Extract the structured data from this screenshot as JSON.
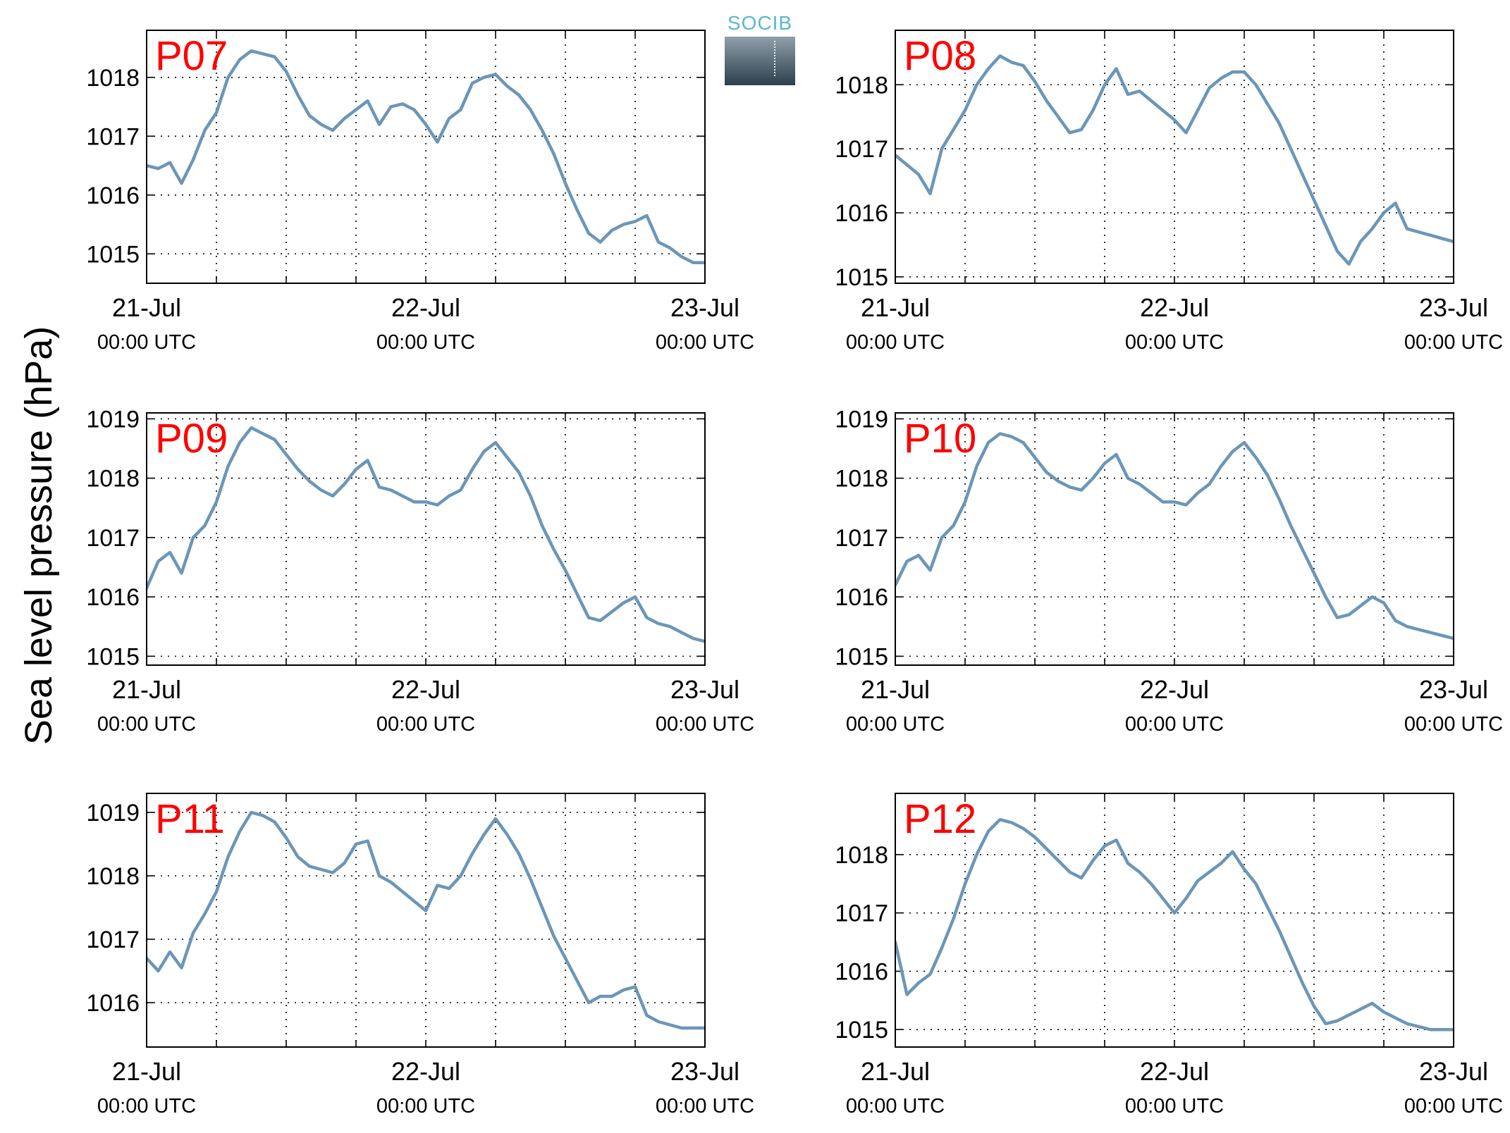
{
  "ylabel": "Sea level pressure (hPa)",
  "logo": {
    "text": "SOCIB"
  },
  "colors": {
    "line": "#6b96b8",
    "station_label": "#ff0000"
  },
  "chart_data": [
    {
      "type": "line",
      "name": "P07",
      "xlim": [
        0,
        48
      ],
      "xticks": [
        0,
        24,
        48
      ],
      "xticklabels": [
        [
          "21-Jul",
          "00:00 UTC"
        ],
        [
          "22-Jul",
          "00:00 UTC"
        ],
        [
          "23-Jul",
          "00:00 UTC"
        ]
      ],
      "ylim": [
        1014.5,
        1018.8
      ],
      "yticks": [
        1015,
        1016,
        1017,
        1018
      ],
      "grid": true,
      "x": [
        0,
        1,
        2,
        3,
        4,
        5,
        6,
        7,
        8,
        9,
        10,
        11,
        12,
        13,
        14,
        15,
        16,
        17,
        18,
        19,
        20,
        21,
        22,
        23,
        24,
        25,
        26,
        27,
        28,
        29,
        30,
        31,
        32,
        33,
        34,
        35,
        36,
        37,
        38,
        39,
        40,
        41,
        42,
        43,
        44,
        45,
        46,
        47,
        48
      ],
      "y": [
        1016.5,
        1016.45,
        1016.55,
        1016.2,
        1016.6,
        1017.1,
        1017.4,
        1018.0,
        1018.3,
        1018.45,
        1018.4,
        1018.35,
        1018.1,
        1017.7,
        1017.35,
        1017.2,
        1017.1,
        1017.3,
        1017.45,
        1017.6,
        1017.2,
        1017.5,
        1017.55,
        1017.45,
        1017.2,
        1016.9,
        1017.3,
        1017.45,
        1017.9,
        1018.0,
        1018.05,
        1017.85,
        1017.7,
        1017.45,
        1017.1,
        1016.7,
        1016.2,
        1015.75,
        1015.35,
        1015.2,
        1015.4,
        1015.5,
        1015.55,
        1015.65,
        1015.2,
        1015.1,
        1014.95,
        1014.85,
        1014.85
      ]
    },
    {
      "type": "line",
      "name": "P08",
      "xlim": [
        0,
        48
      ],
      "xticks": [
        0,
        24,
        48
      ],
      "xticklabels": [
        [
          "21-Jul",
          "00:00 UTC"
        ],
        [
          "22-Jul",
          "00:00 UTC"
        ],
        [
          "23-Jul",
          "00:00 UTC"
        ]
      ],
      "ylim": [
        1014.9,
        1018.85
      ],
      "yticks": [
        1015,
        1016,
        1017,
        1018
      ],
      "grid": true,
      "x": [
        0,
        1,
        2,
        3,
        4,
        5,
        6,
        7,
        8,
        9,
        10,
        11,
        12,
        13,
        14,
        15,
        16,
        17,
        18,
        19,
        20,
        21,
        22,
        23,
        24,
        25,
        26,
        27,
        28,
        29,
        30,
        31,
        32,
        33,
        34,
        35,
        36,
        37,
        38,
        39,
        40,
        41,
        42,
        43,
        44,
        45,
        46,
        47,
        48
      ],
      "y": [
        1016.9,
        1016.75,
        1016.6,
        1016.3,
        1017.0,
        1017.3,
        1017.6,
        1018.0,
        1018.25,
        1018.45,
        1018.35,
        1018.3,
        1018.05,
        1017.75,
        1017.5,
        1017.25,
        1017.3,
        1017.6,
        1018.0,
        1018.25,
        1017.85,
        1017.9,
        1017.75,
        1017.6,
        1017.45,
        1017.25,
        1017.6,
        1017.95,
        1018.1,
        1018.2,
        1018.2,
        1018.0,
        1017.7,
        1017.4,
        1017.0,
        1016.6,
        1016.2,
        1015.8,
        1015.4,
        1015.2,
        1015.55,
        1015.75,
        1016.0,
        1016.15,
        1015.75,
        1015.7,
        1015.65,
        1015.6,
        1015.55
      ]
    },
    {
      "type": "line",
      "name": "P09",
      "xlim": [
        0,
        48
      ],
      "xticks": [
        0,
        24,
        48
      ],
      "xticklabels": [
        [
          "21-Jul",
          "00:00 UTC"
        ],
        [
          "22-Jul",
          "00:00 UTC"
        ],
        [
          "23-Jul",
          "00:00 UTC"
        ]
      ],
      "ylim": [
        1014.85,
        1019.1
      ],
      "yticks": [
        1015,
        1016,
        1017,
        1018,
        1019
      ],
      "grid": true,
      "x": [
        0,
        1,
        2,
        3,
        4,
        5,
        6,
        7,
        8,
        9,
        10,
        11,
        12,
        13,
        14,
        15,
        16,
        17,
        18,
        19,
        20,
        21,
        22,
        23,
        24,
        25,
        26,
        27,
        28,
        29,
        30,
        31,
        32,
        33,
        34,
        35,
        36,
        37,
        38,
        39,
        40,
        41,
        42,
        43,
        44,
        45,
        46,
        47,
        48
      ],
      "y": [
        1016.15,
        1016.6,
        1016.75,
        1016.4,
        1017.0,
        1017.2,
        1017.6,
        1018.2,
        1018.6,
        1018.85,
        1018.75,
        1018.65,
        1018.4,
        1018.15,
        1017.95,
        1017.8,
        1017.7,
        1017.9,
        1018.15,
        1018.3,
        1017.85,
        1017.8,
        1017.7,
        1017.6,
        1017.6,
        1017.55,
        1017.7,
        1017.8,
        1018.15,
        1018.45,
        1018.6,
        1018.35,
        1018.1,
        1017.7,
        1017.2,
        1016.8,
        1016.45,
        1016.05,
        1015.65,
        1015.6,
        1015.75,
        1015.9,
        1016.0,
        1015.65,
        1015.55,
        1015.5,
        1015.4,
        1015.3,
        1015.25
      ]
    },
    {
      "type": "line",
      "name": "P10",
      "xlim": [
        0,
        48
      ],
      "xticks": [
        0,
        24,
        48
      ],
      "xticklabels": [
        [
          "21-Jul",
          "00:00 UTC"
        ],
        [
          "22-Jul",
          "00:00 UTC"
        ],
        [
          "23-Jul",
          "00:00 UTC"
        ]
      ],
      "ylim": [
        1014.85,
        1019.1
      ],
      "yticks": [
        1015,
        1016,
        1017,
        1018,
        1019
      ],
      "grid": true,
      "x": [
        0,
        1,
        2,
        3,
        4,
        5,
        6,
        7,
        8,
        9,
        10,
        11,
        12,
        13,
        14,
        15,
        16,
        17,
        18,
        19,
        20,
        21,
        22,
        23,
        24,
        25,
        26,
        27,
        28,
        29,
        30,
        31,
        32,
        33,
        34,
        35,
        36,
        37,
        38,
        39,
        40,
        41,
        42,
        43,
        44,
        45,
        46,
        47,
        48
      ],
      "y": [
        1016.2,
        1016.6,
        1016.7,
        1016.45,
        1017.0,
        1017.2,
        1017.6,
        1018.2,
        1018.6,
        1018.75,
        1018.7,
        1018.6,
        1018.35,
        1018.1,
        1017.95,
        1017.85,
        1017.8,
        1018.0,
        1018.25,
        1018.4,
        1018.0,
        1017.9,
        1017.75,
        1017.6,
        1017.6,
        1017.55,
        1017.75,
        1017.9,
        1018.2,
        1018.45,
        1018.6,
        1018.35,
        1018.05,
        1017.65,
        1017.2,
        1016.8,
        1016.4,
        1016.0,
        1015.65,
        1015.7,
        1015.85,
        1016.0,
        1015.9,
        1015.6,
        1015.5,
        1015.45,
        1015.4,
        1015.35,
        1015.3
      ]
    },
    {
      "type": "line",
      "name": "P11",
      "xlim": [
        0,
        48
      ],
      "xticks": [
        0,
        24,
        48
      ],
      "xticklabels": [
        [
          "21-Jul",
          "00:00 UTC"
        ],
        [
          "22-Jul",
          "00:00 UTC"
        ],
        [
          "23-Jul",
          "00:00 UTC"
        ]
      ],
      "ylim": [
        1015.3,
        1019.3
      ],
      "yticks": [
        1016,
        1017,
        1018,
        1019
      ],
      "grid": true,
      "x": [
        0,
        1,
        2,
        3,
        4,
        5,
        6,
        7,
        8,
        9,
        10,
        11,
        12,
        13,
        14,
        15,
        16,
        17,
        18,
        19,
        20,
        21,
        22,
        23,
        24,
        25,
        26,
        27,
        28,
        29,
        30,
        31,
        32,
        33,
        34,
        35,
        36,
        37,
        38,
        39,
        40,
        41,
        42,
        43,
        44,
        45,
        46,
        47,
        48
      ],
      "y": [
        1016.7,
        1016.5,
        1016.8,
        1016.55,
        1017.1,
        1017.4,
        1017.75,
        1018.3,
        1018.7,
        1019.0,
        1018.95,
        1018.85,
        1018.6,
        1018.3,
        1018.15,
        1018.1,
        1018.05,
        1018.2,
        1018.5,
        1018.55,
        1018.0,
        1017.9,
        1017.75,
        1017.6,
        1017.45,
        1017.85,
        1017.8,
        1018.0,
        1018.35,
        1018.65,
        1018.9,
        1018.65,
        1018.35,
        1017.95,
        1017.5,
        1017.05,
        1016.7,
        1016.35,
        1016.0,
        1016.1,
        1016.1,
        1016.2,
        1016.25,
        1015.8,
        1015.7,
        1015.65,
        1015.6,
        1015.6,
        1015.6
      ]
    },
    {
      "type": "line",
      "name": "P12",
      "xlim": [
        0,
        48
      ],
      "xticks": [
        0,
        24,
        48
      ],
      "xticklabels": [
        [
          "21-Jul",
          "00:00 UTC"
        ],
        [
          "22-Jul",
          "00:00 UTC"
        ],
        [
          "23-Jul",
          "00:00 UTC"
        ]
      ],
      "ylim": [
        1014.7,
        1019.05
      ],
      "yticks": [
        1015,
        1016,
        1017,
        1018
      ],
      "grid": true,
      "x": [
        0,
        1,
        2,
        3,
        4,
        5,
        6,
        7,
        8,
        9,
        10,
        11,
        12,
        13,
        14,
        15,
        16,
        17,
        18,
        19,
        20,
        21,
        22,
        23,
        24,
        25,
        26,
        27,
        28,
        29,
        30,
        31,
        32,
        33,
        34,
        35,
        36,
        37,
        38,
        39,
        40,
        41,
        42,
        43,
        44,
        45,
        46,
        47,
        48
      ],
      "y": [
        1016.5,
        1015.6,
        1015.8,
        1015.95,
        1016.4,
        1016.9,
        1017.5,
        1018.0,
        1018.4,
        1018.6,
        1018.55,
        1018.45,
        1018.3,
        1018.1,
        1017.9,
        1017.7,
        1017.6,
        1017.9,
        1018.15,
        1018.25,
        1017.85,
        1017.7,
        1017.5,
        1017.25,
        1017.0,
        1017.25,
        1017.55,
        1017.7,
        1017.85,
        1018.05,
        1017.75,
        1017.5,
        1017.1,
        1016.7,
        1016.25,
        1015.8,
        1015.4,
        1015.1,
        1015.15,
        1015.25,
        1015.35,
        1015.45,
        1015.3,
        1015.2,
        1015.1,
        1015.05,
        1015.0,
        1015.0,
        1015.0
      ]
    }
  ]
}
